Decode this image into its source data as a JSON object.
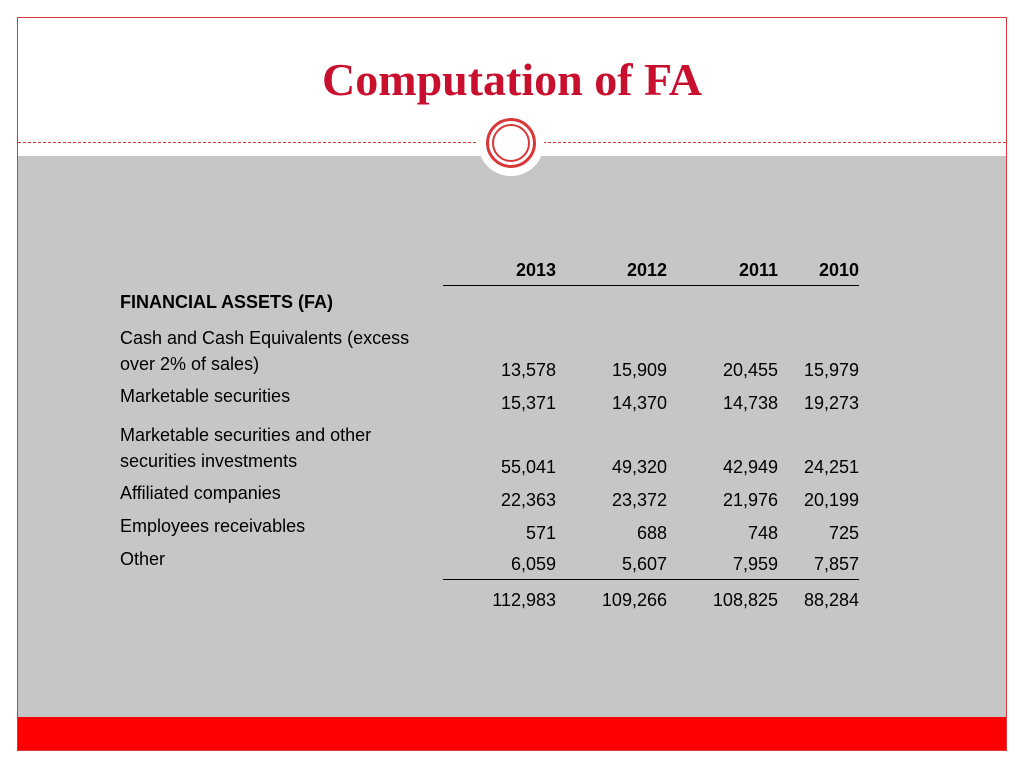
{
  "slide": {
    "title": "Computation of FA",
    "colors": {
      "title": "#c8102e",
      "accent": "#d9383a",
      "content_background": "#c6c6c6",
      "bottom_bar": "#ff0000"
    }
  },
  "table": {
    "columns": [
      "2013",
      "2012",
      "2011",
      "2010"
    ],
    "section_header": "FINANCIAL ASSETS (FA)",
    "rows": [
      {
        "label": "Cash and Cash Equivalents (excess over 2% of sales)",
        "values": [
          "13,578",
          "15,909",
          "20,455",
          "15,979"
        ]
      },
      {
        "label": "Marketable securities",
        "values": [
          "15,371",
          "14,370",
          "14,738",
          "19,273"
        ]
      },
      {
        "label": "Marketable securities and other securities investments",
        "values": [
          "55,041",
          "49,320",
          "42,949",
          "24,251"
        ]
      },
      {
        "label": "Affiliated companies",
        "values": [
          "22,363",
          "23,372",
          "21,976",
          "20,199"
        ]
      },
      {
        "label": "Employees receivables",
        "values": [
          "571",
          "688",
          "748",
          "725"
        ]
      },
      {
        "label": "Other",
        "values": [
          "6,059",
          "5,607",
          "7,959",
          "7,857"
        ]
      }
    ],
    "totals": [
      "112,983",
      "109,266",
      "108,825",
      "88,284"
    ]
  }
}
